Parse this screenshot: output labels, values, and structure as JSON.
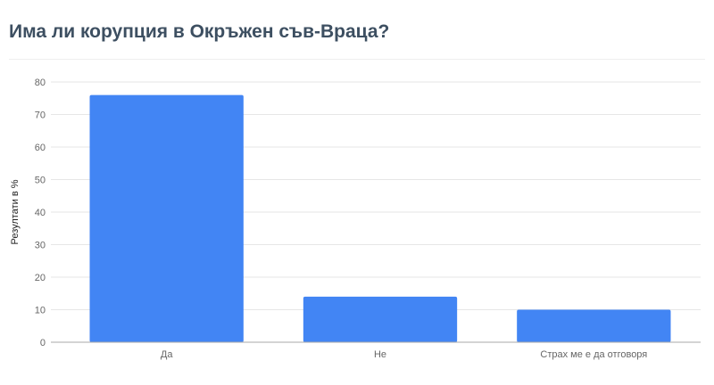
{
  "chart_data": {
    "type": "bar",
    "title": "Има ли корупция в Окръжен съв-Враца?",
    "categories": [
      "Да",
      "Не",
      "Страх ме е да отговоря"
    ],
    "values": [
      76,
      14,
      10
    ],
    "ylabel": "Резултати в %",
    "xlabel": "",
    "ylim": [
      0,
      80
    ],
    "yticks": [
      0,
      10,
      20,
      30,
      40,
      50,
      60,
      70,
      80
    ],
    "grid": true,
    "legend": "none",
    "bar_color": "#4285f4"
  }
}
